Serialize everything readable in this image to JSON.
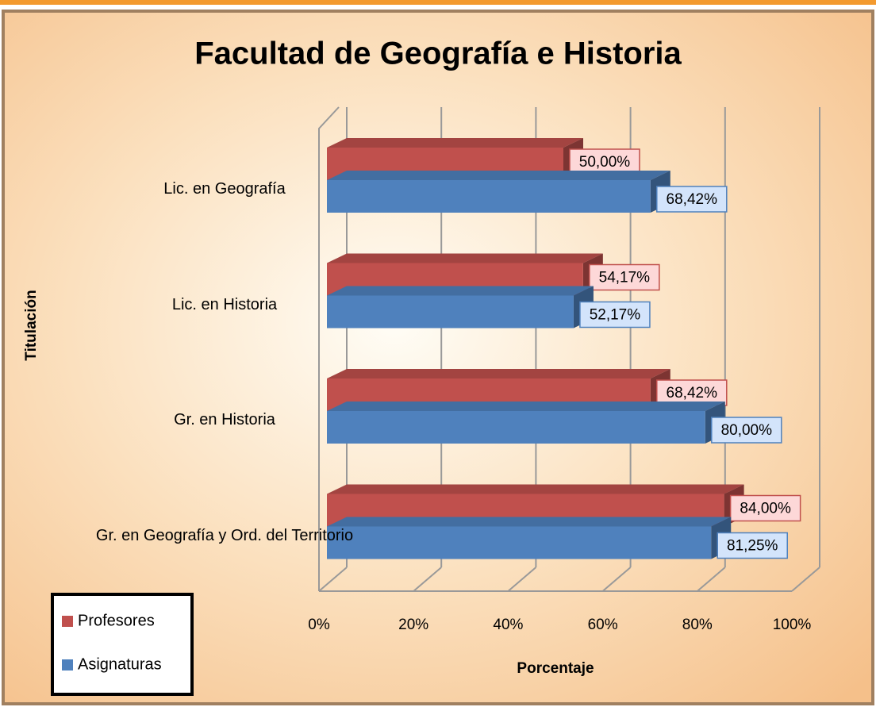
{
  "chart_data": {
    "type": "bar3d_horizontal",
    "title": "Facultad de Geografía e Historia",
    "x_label": "Porcentaje",
    "y_label": "Titulación",
    "categories": [
      "Lic. en Geografía",
      "Lic. en Historia",
      "Gr. en Historia",
      "Gr. en Geografía y Ord. del Territorio"
    ],
    "series": [
      {
        "name": "Profesores",
        "color": "#c0504d",
        "values": [
          50,
          54.17,
          68.42,
          84
        ],
        "value_labels": [
          "50,00%",
          "54,17%",
          "68,42%",
          "84,00%"
        ]
      },
      {
        "name": "Asignaturas",
        "color": "#4f81bd",
        "values": [
          68.42,
          52.17,
          80,
          81.25
        ],
        "value_labels": [
          "68,42%",
          "52,17%",
          "80,00%",
          "81,25%"
        ]
      }
    ],
    "xlim": [
      0,
      100
    ],
    "xticks": [
      {
        "value": 0,
        "label": "0%"
      },
      {
        "value": 20,
        "label": "20%"
      },
      {
        "value": 40,
        "label": "40%"
      },
      {
        "value": 60,
        "label": "60%"
      },
      {
        "value": 80,
        "label": "80%"
      },
      {
        "value": 100,
        "label": "100%"
      }
    ],
    "grid": true,
    "legend": "lower left"
  }
}
